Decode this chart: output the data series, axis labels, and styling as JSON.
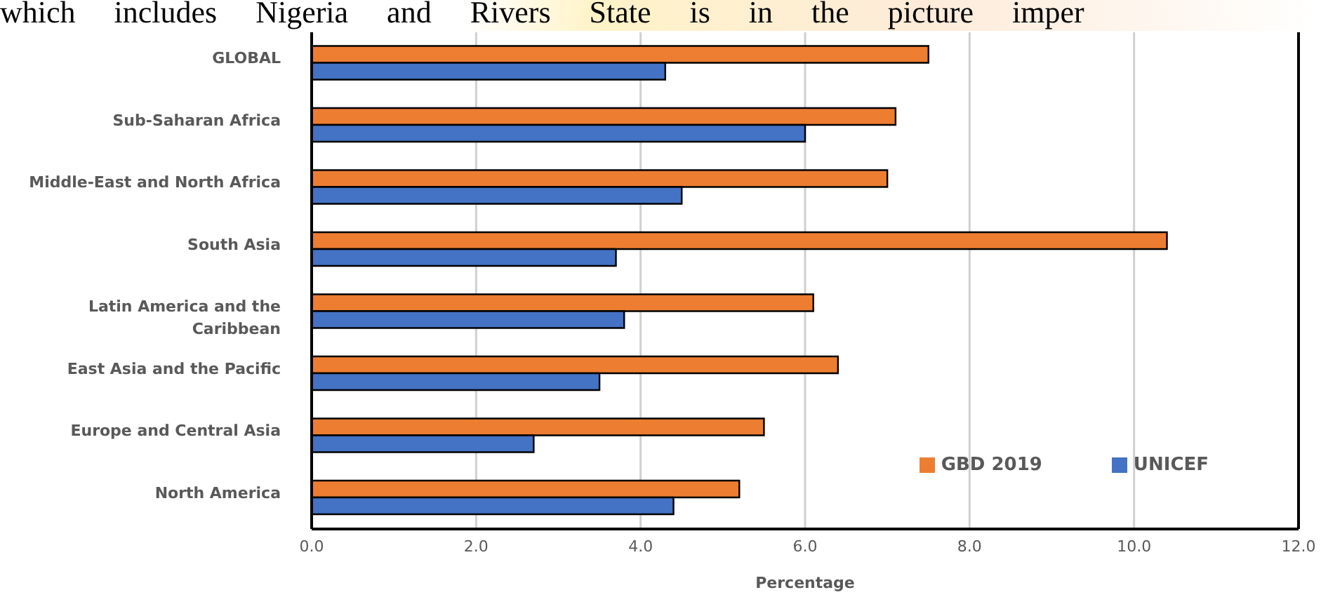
{
  "chart_data": {
    "type": "bar",
    "orientation": "horizontal",
    "xlabel": "Percentage",
    "annotations": [
      "which includes Nigeria and Rivers State is in the picture imper"
    ],
    "categories": [
      "GLOBAL",
      "Sub-Saharan Africa",
      "Middle-East and North Africa",
      "South Asia",
      "Latin America and the Caribbean",
      "East Asia and the Pacific",
      "Europe and Central Asia",
      "North America"
    ],
    "series": [
      {
        "name": "GBD 2019",
        "color": "#ed7d31",
        "values": [
          7.5,
          7.1,
          7.0,
          10.4,
          6.1,
          6.4,
          5.5,
          5.2
        ]
      },
      {
        "name": "UNICEF",
        "color": "#4472c4",
        "values": [
          4.3,
          6.0,
          4.5,
          3.7,
          3.8,
          3.5,
          2.7,
          4.4
        ]
      }
    ],
    "xlim": [
      0,
      12
    ],
    "xticks": [
      {
        "value": 0,
        "label": "0.0"
      },
      {
        "value": 2,
        "label": "2.0"
      },
      {
        "value": 4,
        "label": "4.0"
      },
      {
        "value": 6,
        "label": "6.0"
      },
      {
        "value": 8,
        "label": "8.0"
      },
      {
        "value": 10,
        "label": "10.0"
      },
      {
        "value": 12,
        "label": "12.0"
      }
    ],
    "grid": "x",
    "legend": "bottom right"
  }
}
